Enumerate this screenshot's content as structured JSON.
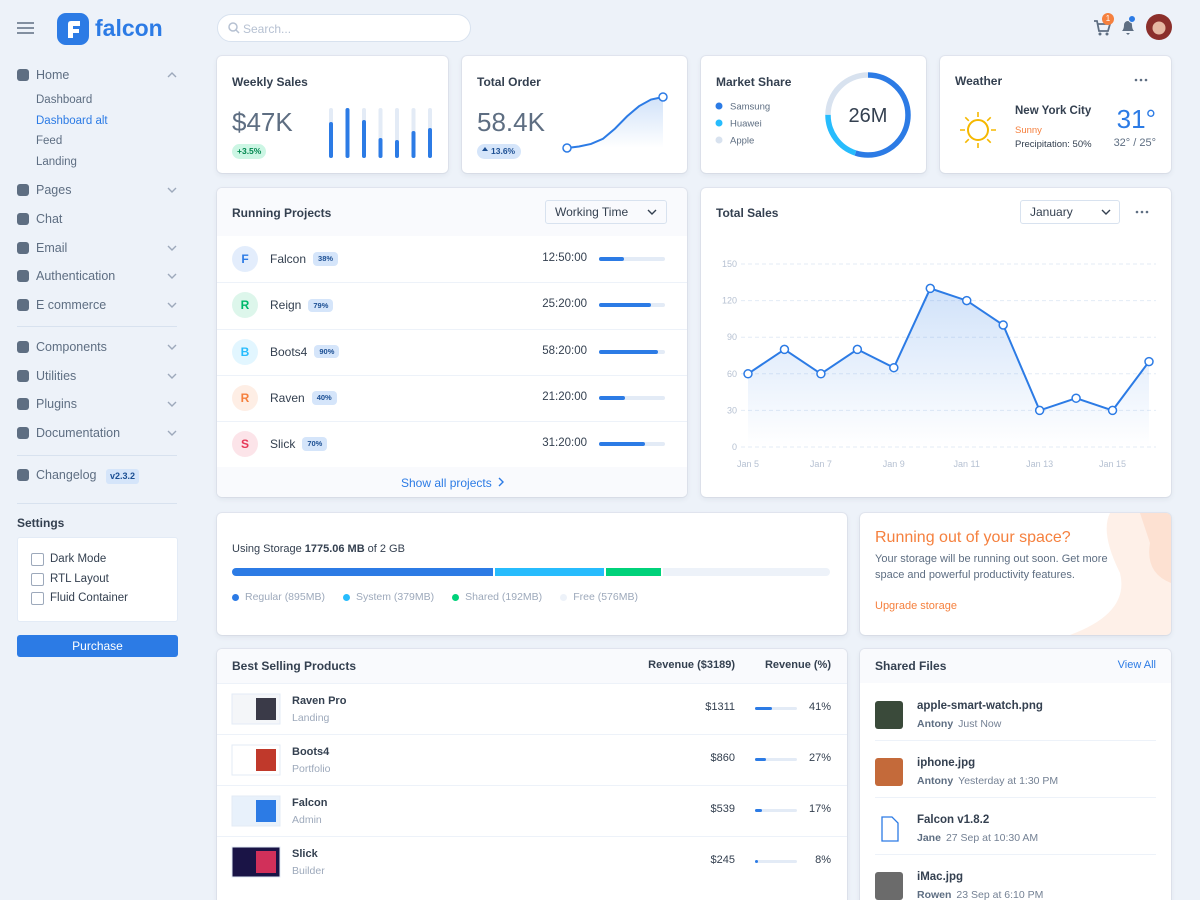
{
  "header": {
    "brand": "falcon",
    "search": "Search...",
    "cart_badge": 1
  },
  "sidebar": {
    "home": {
      "label": "Home",
      "children": [
        "Dashboard",
        "Dashboard alt",
        "Feed",
        "Landing"
      ],
      "active_child": 1
    },
    "menu": [
      {
        "label": "Pages",
        "submenu": true
      },
      {
        "label": "Chat",
        "submenu": false
      },
      {
        "label": "Email",
        "submenu": true
      },
      {
        "label": "Authentication",
        "submenu": true
      },
      {
        "label": "E commerce",
        "submenu": true
      }
    ],
    "menu2": [
      {
        "label": "Components",
        "submenu": true
      },
      {
        "label": "Utilities",
        "submenu": true
      },
      {
        "label": "Plugins",
        "submenu": true
      },
      {
        "label": "Documentation",
        "submenu": true
      }
    ],
    "changelog": {
      "label": "Changelog",
      "version": "v2.3.2"
    },
    "settings": {
      "title": "Settings",
      "options": [
        "Dark Mode",
        "RTL Layout",
        "Fluid Container"
      ],
      "button": "Purchase"
    }
  },
  "cards": {
    "weekly_sales": {
      "title": "Weekly Sales",
      "value": "$47K",
      "change": "+3.5%"
    },
    "total_order": {
      "title": "Total Order",
      "value": "58.4K",
      "change": "13.6%"
    },
    "market_share": {
      "title": "Market Share",
      "center": "26M"
    },
    "weather": {
      "title": "Weather",
      "city": "New York City",
      "condition": "Sunny",
      "precipitation": "Precipitation: 50%",
      "temp": "31°",
      "range": "32° / 25°"
    },
    "running_projects": {
      "title": "Running Projects",
      "select": "Working Time",
      "footer": "Show all projects",
      "rows": [
        {
          "initial": "F",
          "name": "Falcon",
          "progress": 38,
          "progress_label": "38%",
          "time": "12:50:00",
          "color": "#2c7be5"
        },
        {
          "initial": "R",
          "name": "Reign",
          "progress": 79,
          "progress_label": "79%",
          "time": "25:20:00",
          "color": "#00b86b"
        },
        {
          "initial": "B",
          "name": "Boots4",
          "progress": 90,
          "progress_label": "90%",
          "time": "58:20:00",
          "color": "#27bcfd"
        },
        {
          "initial": "R",
          "name": "Raven",
          "progress": 40,
          "progress_label": "40%",
          "time": "21:20:00",
          "color": "#f5803e"
        },
        {
          "initial": "S",
          "name": "Slick",
          "progress": 70,
          "progress_label": "70%",
          "time": "31:20:00",
          "color": "#e63757"
        }
      ]
    },
    "total_sales": {
      "select": "January"
    },
    "storage": {
      "prefix": "Using Storage",
      "used": "1775.06 MB",
      "suffix": "of 2 GB"
    },
    "promo": {
      "title": "Running out of your space?",
      "text": "Your storage will be running out soon. Get more space and powerful productivity features.",
      "link": "Upgrade storage"
    },
    "best_selling": {
      "title": "Best Selling Products",
      "revenue_header": "Revenue ($3189)",
      "share_header": "Revenue (%)",
      "rows": [
        {
          "name": "Raven Pro",
          "category": "Landing",
          "revenue": "$1311",
          "share": 41,
          "share_label": "41%"
        },
        {
          "name": "Boots4",
          "category": "Portfolio",
          "revenue": "$860",
          "share": 27,
          "share_label": "27%"
        },
        {
          "name": "Falcon",
          "category": "Admin",
          "revenue": "$539",
          "share": 17,
          "share_label": "17%"
        },
        {
          "name": "Slick",
          "category": "Builder",
          "revenue": "$245",
          "share": 8,
          "share_label": "8%"
        }
      ]
    },
    "shared_files": {
      "title": "Shared Files",
      "link": "View All",
      "files": [
        {
          "name": "apple-smart-watch.png",
          "user": "Antony",
          "time": "Just Now"
        },
        {
          "name": "iphone.jpg",
          "user": "Antony",
          "time": "Yesterday at 1:30 PM"
        },
        {
          "name": "Falcon v1.8.2",
          "user": "Jane",
          "time": "27 Sep at 10:30 AM"
        },
        {
          "name": "iMac.jpg",
          "user": "Rowen",
          "time": "23 Sep at 6:10 PM"
        }
      ]
    }
  },
  "chart_data": [
    {
      "type": "bar",
      "values": [
        72,
        100,
        76,
        40,
        36,
        54,
        60
      ],
      "ylim": [
        0,
        100
      ],
      "color": "#2c7be5"
    },
    {
      "type": "line",
      "values": [
        0,
        3,
        8,
        18,
        38,
        62,
        82,
        95,
        100
      ],
      "ylim": [
        0,
        100
      ],
      "color": "#2c7be5"
    },
    {
      "type": "pie",
      "categories": [
        "Samsung",
        "Huawei",
        "Apple"
      ],
      "values": [
        55,
        20,
        25
      ],
      "colors": [
        "#2c7be5",
        "#27bcfd",
        "#d8e2ef"
      ]
    },
    {
      "type": "line",
      "title": "Total Sales",
      "categories": [
        "Jan 5",
        null,
        "Jan 7",
        null,
        "Jan 9",
        null,
        "Jan 11",
        null,
        "Jan 13",
        null,
        "Jan 15",
        null
      ],
      "values": [
        60,
        80,
        60,
        80,
        65,
        130,
        120,
        100,
        30,
        40,
        30,
        70
      ],
      "ylim": [
        0,
        150
      ],
      "yticks": [
        0,
        30,
        60,
        90,
        120,
        150
      ],
      "grid": true,
      "color": "#2c7be5"
    },
    {
      "type": "stacked-bar",
      "series": [
        {
          "name": "Regular (895MB)",
          "color": "#2c7be5",
          "values": [
            895
          ]
        },
        {
          "name": "System (379MB)",
          "color": "#27bcfd",
          "values": [
            379
          ]
        },
        {
          "name": "Shared (192MB)",
          "color": "#00d27a",
          "values": [
            192
          ]
        },
        {
          "name": "Free (576MB)",
          "color": "#edf2f9",
          "values": [
            576
          ]
        }
      ]
    }
  ]
}
